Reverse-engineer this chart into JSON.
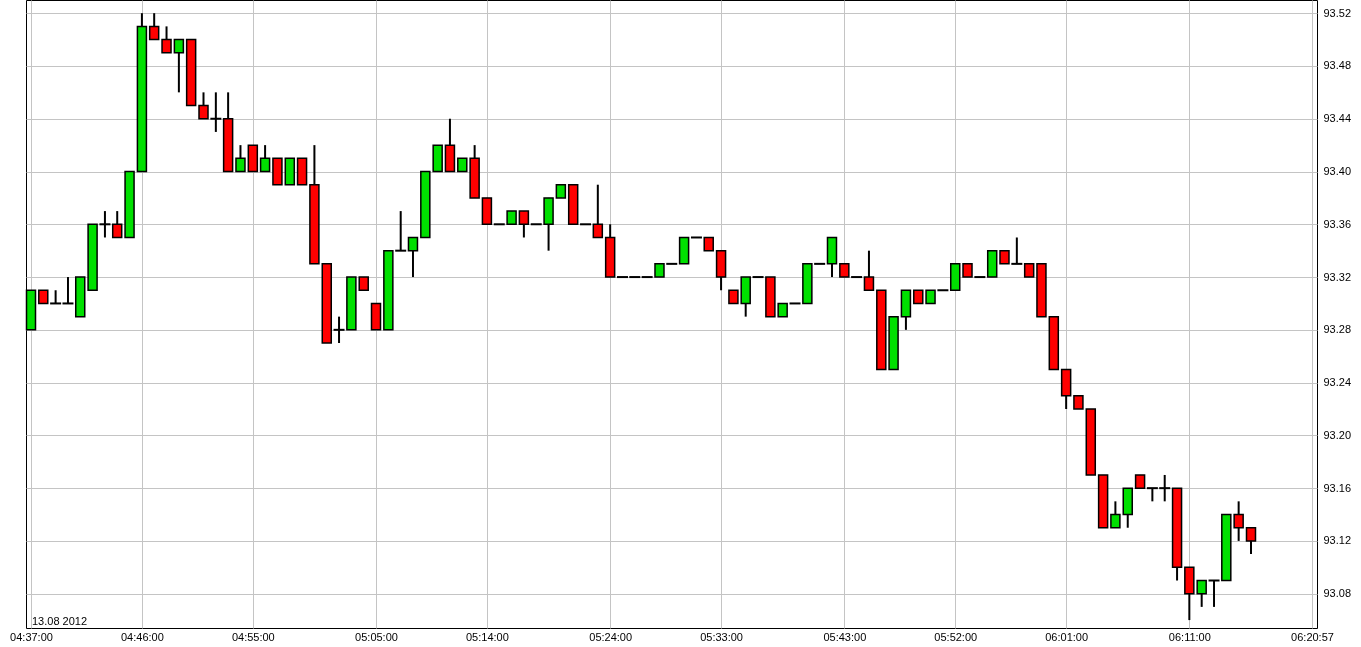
{
  "chart_data": {
    "type": "candlestick",
    "x": [
      4.6167,
      4.6333,
      4.65,
      4.6667,
      4.6833,
      4.7,
      4.7167,
      4.7333,
      4.75,
      4.7667,
      4.7833,
      4.8,
      4.8167,
      4.8333,
      4.85,
      4.8667,
      4.8833,
      4.9,
      4.9167,
      4.9333,
      4.95,
      4.9667,
      4.9833,
      5,
      5.0167,
      5.0333,
      5.05,
      5.0667,
      5.0833,
      5.1,
      5.1167,
      5.1333,
      5.15,
      5.1667,
      5.1833,
      5.2,
      5.2167,
      5.2333,
      5.25,
      5.2667,
      5.2833,
      5.3,
      5.3167,
      5.3333,
      5.35,
      5.3667,
      5.3833,
      5.4,
      5.4167,
      5.4333,
      5.45,
      5.4667,
      5.4833,
      5.5,
      5.5167,
      5.5333,
      5.55,
      5.5667,
      5.5833,
      5.6,
      5.6167,
      5.6333,
      5.65,
      5.6667,
      5.6833,
      5.7,
      5.7167,
      5.7333,
      5.75,
      5.7667,
      5.7833,
      5.8,
      5.8167,
      5.8333,
      5.85,
      5.8667,
      5.8833,
      5.9,
      5.9167,
      5.9333,
      5.95,
      5.9667,
      5.9833,
      6,
      6.0167,
      6.0333,
      6.05,
      6.0667,
      6.0833,
      6.1,
      6.1167,
      6.1333,
      6.15,
      6.1667,
      6.1833,
      6.2,
      6.2167,
      6.2333,
      6.25,
      6.2667
    ],
    "ohlc": [
      [
        93.28,
        93.31,
        93.28,
        93.31
      ],
      [
        93.31,
        93.31,
        93.3,
        93.3
      ],
      [
        93.3,
        93.31,
        93.3,
        93.3
      ],
      [
        93.3,
        93.32,
        93.3,
        93.3
      ],
      [
        93.29,
        93.32,
        93.29,
        93.32
      ],
      [
        93.31,
        93.36,
        93.31,
        93.36
      ],
      [
        93.36,
        93.37,
        93.35,
        93.36
      ],
      [
        93.36,
        93.37,
        93.35,
        93.35
      ],
      [
        93.35,
        93.4,
        93.35,
        93.4
      ],
      [
        93.4,
        93.52,
        93.4,
        93.51
      ],
      [
        93.51,
        93.52,
        93.5,
        93.5
      ],
      [
        93.5,
        93.51,
        93.49,
        93.49
      ],
      [
        93.49,
        93.5,
        93.46,
        93.5
      ],
      [
        93.5,
        93.5,
        93.45,
        93.45
      ],
      [
        93.45,
        93.46,
        93.44,
        93.44
      ],
      [
        93.44,
        93.46,
        93.43,
        93.44
      ],
      [
        93.44,
        93.46,
        93.4,
        93.4
      ],
      [
        93.4,
        93.42,
        93.4,
        93.41
      ],
      [
        93.42,
        93.42,
        93.4,
        93.4
      ],
      [
        93.4,
        93.42,
        93.4,
        93.41
      ],
      [
        93.41,
        93.41,
        93.39,
        93.39
      ],
      [
        93.39,
        93.41,
        93.39,
        93.41
      ],
      [
        93.41,
        93.41,
        93.39,
        93.39
      ],
      [
        93.39,
        93.42,
        93.33,
        93.33
      ],
      [
        93.33,
        93.33,
        93.27,
        93.27
      ],
      [
        93.28,
        93.29,
        93.27,
        93.28
      ],
      [
        93.28,
        93.32,
        93.28,
        93.32
      ],
      [
        93.32,
        93.32,
        93.31,
        93.31
      ],
      [
        93.3,
        93.3,
        93.28,
        93.28
      ],
      [
        93.28,
        93.34,
        93.28,
        93.34
      ],
      [
        93.34,
        93.37,
        93.34,
        93.34
      ],
      [
        93.34,
        93.35,
        93.32,
        93.35
      ],
      [
        93.35,
        93.4,
        93.35,
        93.4
      ],
      [
        93.4,
        93.42,
        93.4,
        93.42
      ],
      [
        93.42,
        93.44,
        93.4,
        93.4
      ],
      [
        93.4,
        93.41,
        93.4,
        93.41
      ],
      [
        93.41,
        93.42,
        93.38,
        93.38
      ],
      [
        93.38,
        93.38,
        93.36,
        93.36
      ],
      [
        93.36,
        93.36,
        93.36,
        93.36
      ],
      [
        93.36,
        93.37,
        93.36,
        93.37
      ],
      [
        93.37,
        93.37,
        93.35,
        93.36
      ],
      [
        93.36,
        93.36,
        93.36,
        93.36
      ],
      [
        93.36,
        93.38,
        93.34,
        93.38
      ],
      [
        93.38,
        93.39,
        93.38,
        93.39
      ],
      [
        93.39,
        93.39,
        93.36,
        93.36
      ],
      [
        93.36,
        93.36,
        93.36,
        93.36
      ],
      [
        93.36,
        93.39,
        93.35,
        93.35
      ],
      [
        93.35,
        93.36,
        93.32,
        93.32
      ],
      [
        93.32,
        93.32,
        93.32,
        93.32
      ],
      [
        93.32,
        93.32,
        93.32,
        93.32
      ],
      [
        93.32,
        93.32,
        93.32,
        93.32
      ],
      [
        93.32,
        93.33,
        93.32,
        93.33
      ],
      [
        93.33,
        93.33,
        93.33,
        93.33
      ],
      [
        93.33,
        93.35,
        93.33,
        93.35
      ],
      [
        93.35,
        93.35,
        93.35,
        93.35
      ],
      [
        93.35,
        93.35,
        93.34,
        93.34
      ],
      [
        93.34,
        93.34,
        93.31,
        93.32
      ],
      [
        93.31,
        93.31,
        93.3,
        93.3
      ],
      [
        93.3,
        93.32,
        93.29,
        93.32
      ],
      [
        93.32,
        93.32,
        93.32,
        93.32
      ],
      [
        93.32,
        93.32,
        93.29,
        93.29
      ],
      [
        93.29,
        93.3,
        93.29,
        93.3
      ],
      [
        93.3,
        93.3,
        93.3,
        93.3
      ],
      [
        93.3,
        93.33,
        93.3,
        93.33
      ],
      [
        93.33,
        93.33,
        93.33,
        93.33
      ],
      [
        93.33,
        93.35,
        93.32,
        93.35
      ],
      [
        93.33,
        93.33,
        93.32,
        93.32
      ],
      [
        93.32,
        93.32,
        93.32,
        93.32
      ],
      [
        93.32,
        93.34,
        93.31,
        93.31
      ],
      [
        93.31,
        93.31,
        93.25,
        93.25
      ],
      [
        93.25,
        93.29,
        93.25,
        93.29
      ],
      [
        93.29,
        93.31,
        93.28,
        93.31
      ],
      [
        93.31,
        93.31,
        93.3,
        93.3
      ],
      [
        93.3,
        93.31,
        93.3,
        93.31
      ],
      [
        93.31,
        93.31,
        93.31,
        93.31
      ],
      [
        93.31,
        93.33,
        93.31,
        93.33
      ],
      [
        93.33,
        93.33,
        93.32,
        93.32
      ],
      [
        93.32,
        93.32,
        93.32,
        93.32
      ],
      [
        93.32,
        93.34,
        93.32,
        93.34
      ],
      [
        93.34,
        93.34,
        93.33,
        93.33
      ],
      [
        93.33,
        93.35,
        93.33,
        93.33
      ],
      [
        93.33,
        93.33,
        93.32,
        93.32
      ],
      [
        93.33,
        93.33,
        93.29,
        93.29
      ],
      [
        93.29,
        93.29,
        93.25,
        93.25
      ],
      [
        93.25,
        93.25,
        93.22,
        93.23
      ],
      [
        93.23,
        93.23,
        93.22,
        93.22
      ],
      [
        93.22,
        93.22,
        93.17,
        93.17
      ],
      [
        93.17,
        93.17,
        93.13,
        93.13
      ],
      [
        93.13,
        93.15,
        93.13,
        93.14
      ],
      [
        93.14,
        93.16,
        93.13,
        93.16
      ],
      [
        93.17,
        93.17,
        93.16,
        93.16
      ],
      [
        93.16,
        93.16,
        93.15,
        93.16
      ],
      [
        93.16,
        93.17,
        93.15,
        93.16
      ],
      [
        93.16,
        93.16,
        93.09,
        93.1
      ],
      [
        93.1,
        93.1,
        93.06,
        93.08
      ],
      [
        93.08,
        93.09,
        93.07,
        93.09
      ],
      [
        93.09,
        93.09,
        93.07,
        93.09
      ],
      [
        93.09,
        93.14,
        93.09,
        93.14
      ],
      [
        93.14,
        93.15,
        93.12,
        93.13
      ],
      [
        93.13,
        93.13,
        93.11,
        93.12
      ]
    ],
    "xlim": [
      4.6167,
      6.3492
    ],
    "xticks": [
      {
        "value": 4.6167,
        "label": "04:37:00"
      },
      {
        "value": 4.7667,
        "label": "04:46:00"
      },
      {
        "value": 4.9167,
        "label": "04:55:00"
      },
      {
        "value": 5.0833,
        "label": "05:05:00"
      },
      {
        "value": 5.2333,
        "label": "05:14:00"
      },
      {
        "value": 5.4,
        "label": "05:24:00"
      },
      {
        "value": 5.55,
        "label": "05:33:00"
      },
      {
        "value": 5.7167,
        "label": "05:43:00"
      },
      {
        "value": 5.8667,
        "label": "05:52:00"
      },
      {
        "value": 6.0167,
        "label": "06:01:00"
      },
      {
        "value": 6.1833,
        "label": "06:11:00"
      },
      {
        "value": 6.3492,
        "label": "06:20:57"
      }
    ],
    "ylim": [
      93.054,
      93.53
    ],
    "yticks": [
      93.08,
      93.12,
      93.16,
      {
        "value": 93.2,
        "label": "93.20"
      },
      93.24,
      93.28,
      93.32,
      93.36,
      {
        "value": 93.4,
        "label": "93.40"
      },
      93.44,
      93.48,
      93.52
    ],
    "grid": true,
    "annotations": [
      "13.08 2012"
    ]
  }
}
